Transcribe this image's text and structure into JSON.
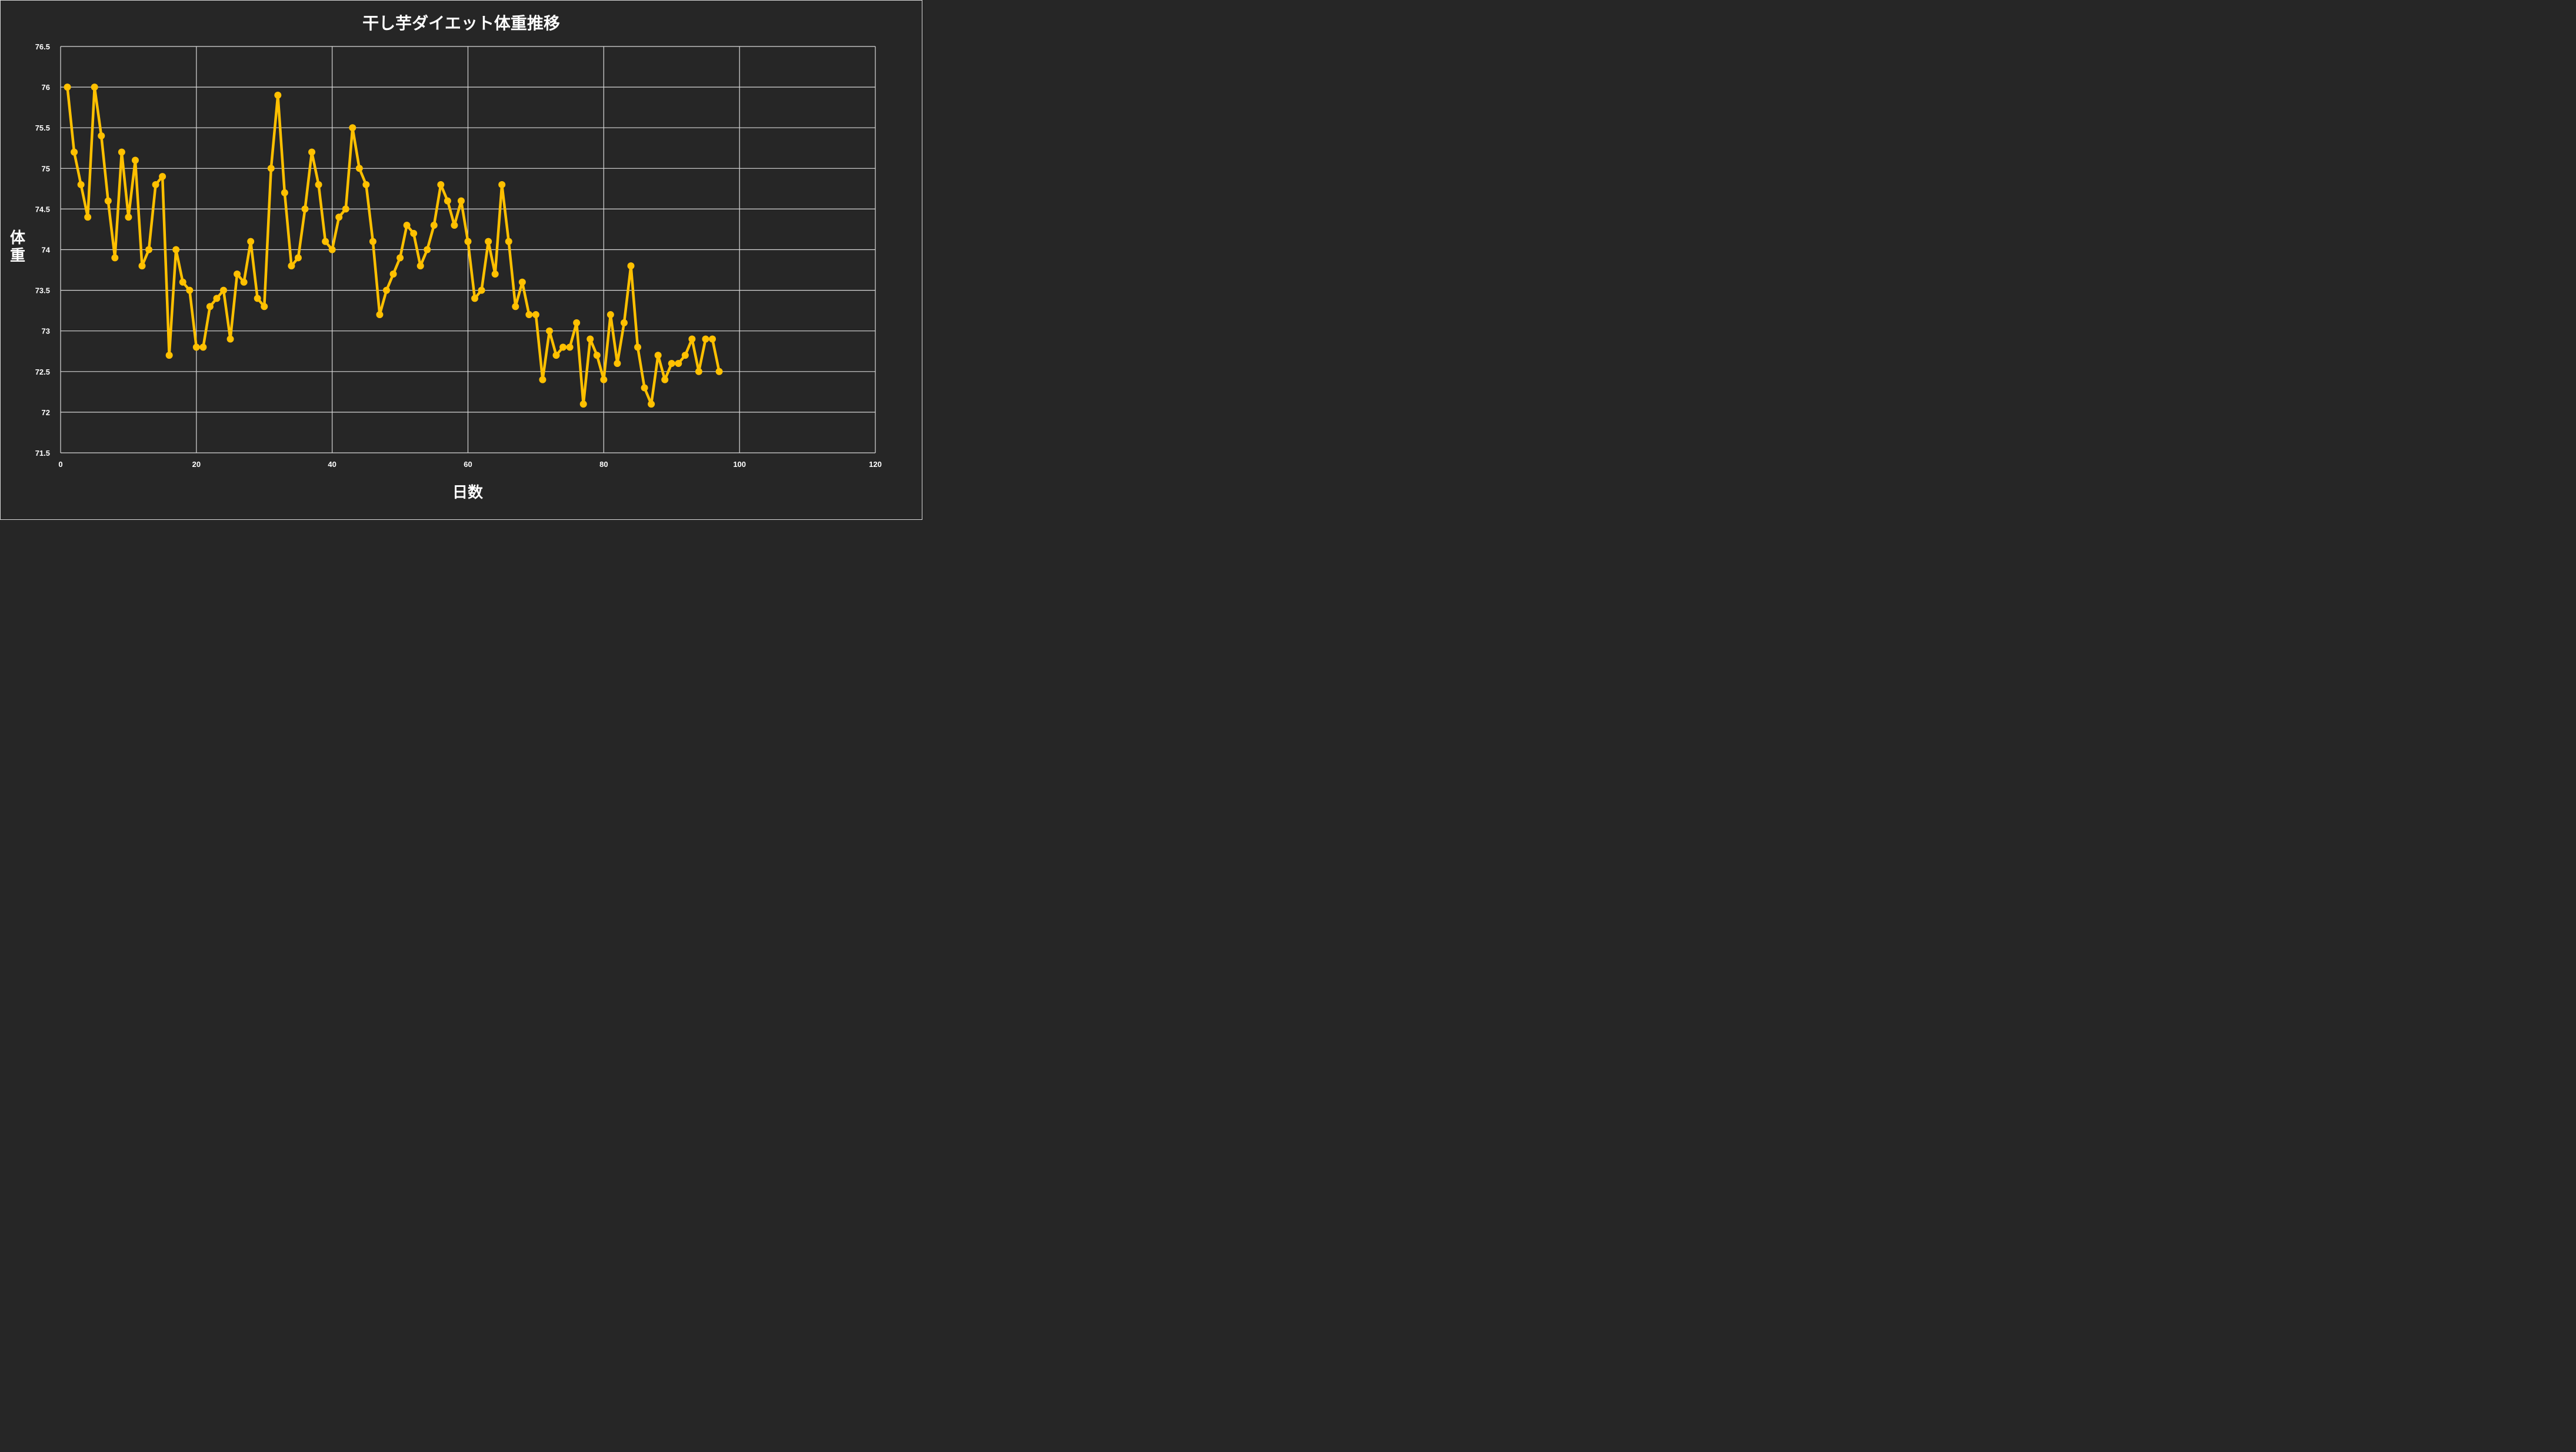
{
  "chart_data": {
    "type": "line",
    "title": "干し芋ダイエット体重推移",
    "xlabel": "日数",
    "ylabel": "体重",
    "xlim": [
      0,
      120
    ],
    "ylim": [
      71.5,
      76.5
    ],
    "x_ticks": [
      0,
      20,
      40,
      60,
      80,
      100,
      120
    ],
    "y_ticks": [
      71.5,
      72,
      72.5,
      73,
      73.5,
      74,
      74.5,
      75,
      75.5,
      76,
      76.5
    ],
    "y_tick_labels": [
      "71.5",
      "72",
      "72.5",
      "73",
      "73.5",
      "74",
      "74.5",
      "75",
      "75.5",
      "76",
      "76.5"
    ],
    "grid": true,
    "legend": "none",
    "series": [
      {
        "name": "体重",
        "color": "#FFC000",
        "marker": "circle",
        "x": [
          1,
          2,
          3,
          4,
          5,
          6,
          7,
          8,
          9,
          10,
          11,
          12,
          13,
          14,
          15,
          16,
          17,
          18,
          19,
          20,
          21,
          22,
          23,
          24,
          25,
          26,
          27,
          28,
          29,
          30,
          31,
          32,
          33,
          34,
          35,
          36,
          37,
          38,
          39,
          40,
          41,
          42,
          43,
          44,
          45,
          46,
          47,
          48,
          49,
          50,
          51,
          52,
          53,
          54,
          55,
          56,
          57,
          58,
          59,
          60,
          61,
          62,
          63,
          64,
          65,
          66,
          67,
          68,
          69,
          70,
          71,
          72,
          73,
          74,
          75,
          76,
          77,
          78,
          79,
          80,
          81,
          82,
          83,
          84,
          85,
          86,
          87,
          88,
          89,
          90,
          91,
          92,
          93,
          94,
          95,
          96,
          97
        ],
        "values": [
          76.0,
          75.2,
          74.8,
          74.4,
          76.0,
          75.4,
          74.6,
          73.9,
          75.2,
          74.4,
          75.1,
          73.8,
          74.0,
          74.8,
          74.9,
          72.7,
          74.0,
          73.6,
          73.5,
          72.8,
          72.8,
          73.3,
          73.4,
          73.5,
          72.9,
          73.7,
          73.6,
          74.1,
          73.4,
          73.3,
          75.0,
          75.9,
          74.7,
          73.8,
          73.9,
          74.5,
          75.2,
          74.8,
          74.1,
          74.0,
          74.4,
          74.5,
          75.5,
          75.0,
          74.8,
          74.1,
          73.2,
          73.5,
          73.7,
          73.9,
          74.3,
          74.2,
          73.8,
          74.0,
          74.3,
          74.8,
          74.6,
          74.3,
          74.6,
          74.1,
          73.4,
          73.5,
          74.1,
          73.7,
          74.8,
          74.1,
          73.3,
          73.6,
          73.2,
          73.2,
          72.4,
          73.0,
          72.7,
          72.8,
          72.8,
          73.1,
          72.1,
          72.9,
          72.7,
          72.4,
          73.2,
          72.6,
          73.1,
          73.8,
          72.8,
          72.3,
          72.1,
          72.7,
          72.4,
          72.6,
          72.6,
          72.7,
          72.9,
          72.5,
          72.9,
          72.9,
          72.5
        ]
      }
    ]
  },
  "colors": {
    "background": "#262626",
    "grid": "#d9d9d9",
    "series": "#FFC000",
    "text": "#ffffff"
  }
}
